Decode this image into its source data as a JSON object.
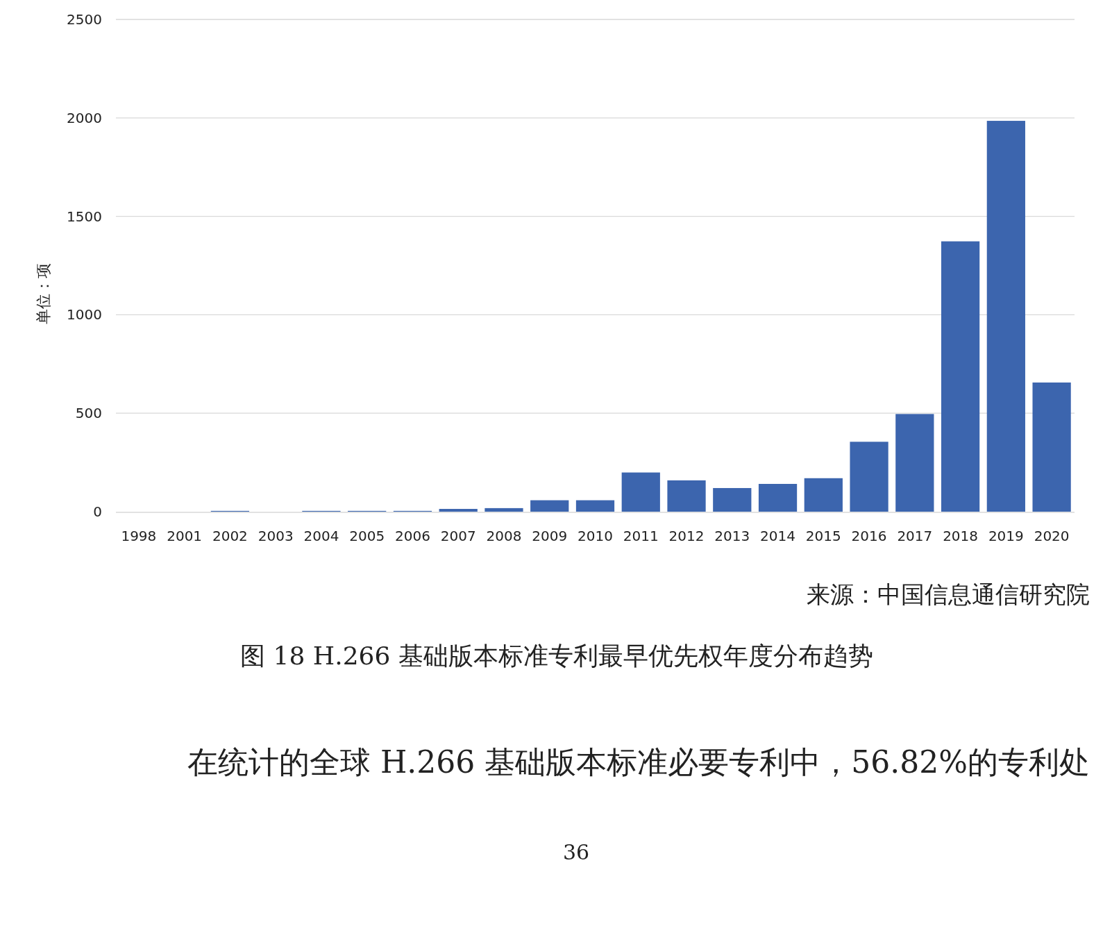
{
  "chart_data": {
    "type": "bar",
    "title": "图  18 H.266 基础版本标准专利最早优先权年度分布趋势",
    "ylabel": "单位：项",
    "categories": [
      "1998",
      "2001",
      "2002",
      "2003",
      "2004",
      "2005",
      "2006",
      "2007",
      "2008",
      "2009",
      "2010",
      "2011",
      "2012",
      "2013",
      "2014",
      "2015",
      "2016",
      "2017",
      "2018",
      "2019",
      "2020"
    ],
    "values": [
      null,
      null,
      4,
      null,
      4,
      4,
      4,
      14,
      18,
      58,
      58,
      199,
      159,
      120,
      141,
      170,
      355,
      496,
      1373,
      1985,
      656
    ],
    "color": "#3c65ae",
    "ylim": [
      0,
      2500
    ],
    "yticks": [
      0,
      500,
      1000,
      1500,
      2000,
      2500
    ],
    "grid": "y",
    "annotations": [
      "来源：中国信息通信研究院",
      "在统计的全球 H.266 基础版本标准必要专利中，56.82%的专利处",
      "36"
    ]
  }
}
